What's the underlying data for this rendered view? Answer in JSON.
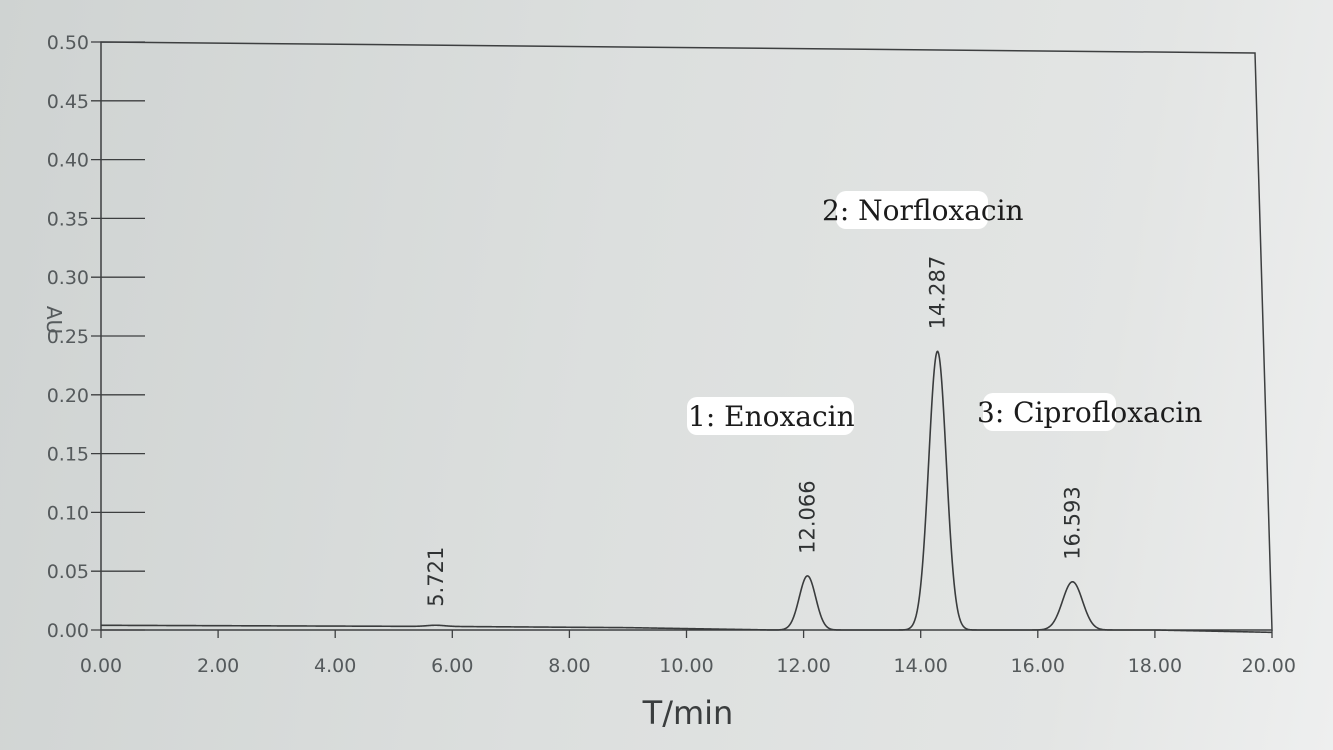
{
  "chart_data": {
    "type": "line",
    "xlabel": "T/min",
    "ylabel": "AU",
    "xlim": [
      0,
      20
    ],
    "ylim": [
      0,
      0.5
    ],
    "grid": false,
    "x_ticks": [
      "0.00",
      "2.00",
      "4.00",
      "6.00",
      "8.00",
      "10.00",
      "12.00",
      "14.00",
      "16.00",
      "18.00",
      "20.00"
    ],
    "y_ticks": [
      "0.00",
      "0.05",
      "0.10",
      "0.15",
      "0.20",
      "0.25",
      "0.30",
      "0.35",
      "0.40",
      "0.45",
      "0.50"
    ],
    "baseline": [
      [
        0,
        0.004
      ],
      [
        6,
        0.003
      ],
      [
        9,
        0.002
      ],
      [
        11.5,
        0.0
      ],
      [
        18,
        0.0
      ],
      [
        20,
        -0.002
      ]
    ],
    "peaks": [
      {
        "rt": 5.721,
        "label": "5.721",
        "height": 0.001
      },
      {
        "rt": 12.066,
        "label": "12.066",
        "height": 0.046
      },
      {
        "rt": 14.287,
        "label": "14.287",
        "height": 0.237
      },
      {
        "rt": 16.593,
        "label": "16.593",
        "height": 0.041
      }
    ],
    "annotations": [
      {
        "text": "1: Enoxacin",
        "peak": "12.066"
      },
      {
        "text": "2: Norfloxacin",
        "peak": "14.287"
      },
      {
        "text": "3: Ciprofloxacin",
        "peak": "16.593"
      }
    ]
  }
}
